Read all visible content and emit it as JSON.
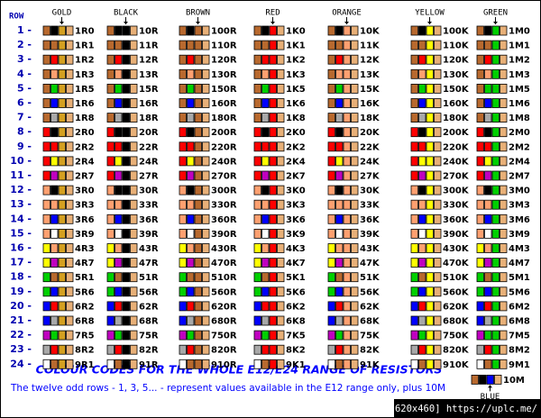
{
  "header": {
    "row_label": "ROW"
  },
  "digit_colors": [
    "#000000",
    "#b8692e",
    "#ff0000",
    "#ffa070",
    "#ffff00",
    "#00d000",
    "#0000ff",
    "#c000c0",
    "#a8a8a8",
    "#ffffff"
  ],
  "tolerance_color": "#e8b078",
  "rows": [
    "1 -",
    "2 -",
    "3 -",
    "4 -",
    "5 -",
    "6 -",
    "7 -",
    "8 -",
    "9 -",
    "10 -",
    "11 -",
    "12 -",
    "13 -",
    "14 -",
    "15 -",
    "16 -",
    "17 -",
    "18 -",
    "19 -",
    "20 -",
    "21 -",
    "22 -",
    "23 -",
    "24 -"
  ],
  "columns": [
    {
      "header": "GOLD",
      "multiplier_color": "#d4a020",
      "labels": [
        "1R0",
        "1R1",
        "1R2",
        "1R3",
        "1R5",
        "1R6",
        "1R8",
        "2R0",
        "2R2",
        "2R4",
        "2R7",
        "3R0",
        "3R3",
        "3R6",
        "3R9",
        "4R3",
        "4R7",
        "5R1",
        "5R6",
        "6R2",
        "6R8",
        "7R5",
        "8R2",
        "9R1"
      ]
    },
    {
      "header": "BLACK",
      "multiplier_color": "#000000",
      "labels": [
        "10R",
        "11R",
        "12R",
        "13R",
        "15R",
        "16R",
        "18R",
        "20R",
        "22R",
        "24R",
        "27R",
        "30R",
        "33R",
        "36R",
        "39R",
        "43R",
        "47R",
        "51R",
        "56R",
        "62R",
        "68R",
        "75R",
        "82R",
        "91R"
      ]
    },
    {
      "header": "BROWN",
      "multiplier_color": "#b8692e",
      "labels": [
        "100R",
        "110R",
        "120R",
        "130R",
        "150R",
        "160R",
        "180R",
        "200R",
        "220R",
        "240R",
        "270R",
        "300R",
        "330R",
        "360R",
        "390R",
        "430R",
        "470R",
        "510R",
        "560R",
        "620R",
        "680R",
        "750R",
        "820R",
        "910R"
      ]
    },
    {
      "header": "RED",
      "multiplier_color": "#ff0000",
      "labels": [
        "1K0",
        "1K1",
        "1K2",
        "1K3",
        "1K5",
        "1K6",
        "1K8",
        "2K0",
        "2K2",
        "2K4",
        "2K7",
        "3K0",
        "3K3",
        "3K6",
        "3K9",
        "4K3",
        "4K7",
        "5K1",
        "5K6",
        "6K2",
        "6K8",
        "7K5",
        "8K2",
        "9K1"
      ]
    },
    {
      "header": "ORANGE",
      "multiplier_color": "#ffa070",
      "labels": [
        "10K",
        "11K",
        "12K",
        "13K",
        "15K",
        "16K",
        "18K",
        "20K",
        "22K",
        "24K",
        "27K",
        "30K",
        "33K",
        "36K",
        "39K",
        "43K",
        "47K",
        "51K",
        "56K",
        "62K",
        "68K",
        "75K",
        "82K",
        "91K"
      ]
    },
    {
      "header": "YELLOW",
      "multiplier_color": "#ffff00",
      "labels": [
        "100K",
        "110K",
        "120K",
        "130K",
        "150K",
        "160K",
        "180K",
        "200K",
        "220K",
        "240K",
        "270K",
        "300K",
        "330K",
        "360K",
        "390K",
        "430K",
        "470K",
        "510K",
        "560K",
        "620K",
        "680K",
        "750K",
        "820K",
        "910K"
      ]
    },
    {
      "header": "GREEN",
      "multiplier_color": "#00d000",
      "labels": [
        "1M0",
        "1M1",
        "1M2",
        "1M3",
        "1M5",
        "1M6",
        "1M8",
        "2M0",
        "2M2",
        "2M4",
        "2M7",
        "3M0",
        "3M3",
        "3M6",
        "3M9",
        "4M3",
        "4M7",
        "5M1",
        "5M6",
        "6M2",
        "6M8",
        "7M5",
        "8M2",
        "9M1"
      ]
    }
  ],
  "extra": {
    "label": "10M",
    "header": "BLUE",
    "multiplier_color": "#0000ff"
  },
  "footer": {
    "title": "COLOUR CODES FOR THE WHOLE E12/E24 RANGE OF RESISTORS",
    "note": "The twelve odd rows - 1, 3, 5... - represent values available in the E12 range only, plus 10M"
  },
  "watermark": "[620x460] https://uplc.me/"
}
